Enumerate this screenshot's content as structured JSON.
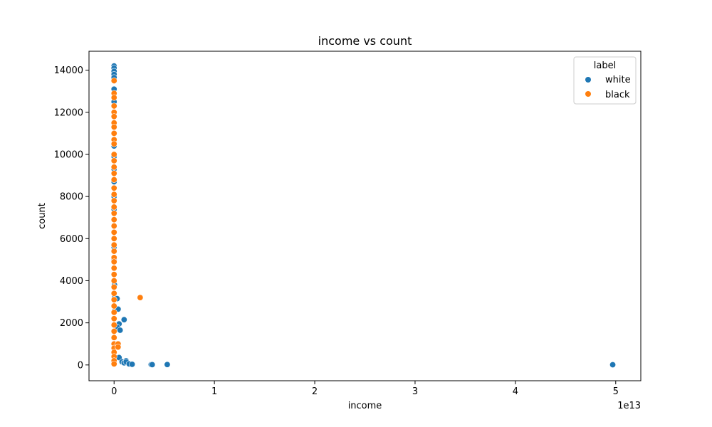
{
  "chart_data": {
    "type": "scatter",
    "title": "income vs count",
    "xlabel": "income",
    "ylabel": "count",
    "x_offset_label": "1e13",
    "xlim": [
      -0.25,
      5.25
    ],
    "ylim": [
      -750,
      14900
    ],
    "xticks": [
      0,
      1,
      2,
      3,
      4,
      5
    ],
    "yticks": [
      0,
      2000,
      4000,
      6000,
      8000,
      10000,
      12000,
      14000
    ],
    "grid": false,
    "legend": {
      "title": "label",
      "placement": "top-right"
    },
    "series": [
      {
        "name": "white",
        "color": "#1f77b4",
        "x": [
          0,
          0,
          0,
          0,
          0,
          0,
          0,
          0,
          0,
          0,
          0,
          0,
          0,
          0,
          0,
          0,
          0,
          0,
          0,
          0,
          0.002,
          0.004,
          0.006,
          0.01,
          0.03,
          0.04,
          0.05,
          0.03,
          0.06,
          0.1,
          0.12,
          0.05,
          0.08,
          0.1,
          0.12,
          0.15,
          0.18,
          0.37,
          0.38,
          0.53,
          4.97
        ],
        "y": [
          14200,
          14100,
          13950,
          13800,
          13650,
          13100,
          12500,
          12000,
          11500,
          11000,
          10400,
          9900,
          9300,
          8700,
          8000,
          7400,
          6900,
          6300,
          5600,
          5000,
          4300,
          3800,
          3200,
          2600,
          3150,
          2650,
          1950,
          1800,
          1650,
          2150,
          200,
          350,
          150,
          100,
          150,
          50,
          30,
          20,
          15,
          20,
          10
        ]
      },
      {
        "name": "black",
        "color": "#ff7f0e",
        "x": [
          0,
          0,
          0,
          0,
          0,
          0,
          0,
          0,
          0,
          0,
          0,
          0,
          0,
          0,
          0,
          0,
          0,
          0,
          0,
          0,
          0,
          0,
          0,
          0,
          0,
          0,
          0,
          0,
          0,
          0,
          0,
          0,
          0,
          0,
          0,
          0,
          0,
          0,
          0,
          0,
          0,
          0,
          0,
          0,
          0,
          0,
          0,
          0.04,
          0.04,
          0.26
        ],
        "y": [
          13500,
          12900,
          12700,
          12300,
          12000,
          11800,
          11500,
          11300,
          11000,
          10700,
          10500,
          10000,
          9700,
          9400,
          9100,
          8800,
          8400,
          8100,
          7800,
          7500,
          7200,
          6900,
          6600,
          6300,
          6000,
          5700,
          5400,
          5100,
          4900,
          4600,
          4300,
          4000,
          3700,
          3400,
          3100,
          2800,
          2500,
          2200,
          1900,
          1600,
          1300,
          1000,
          800,
          600,
          400,
          200,
          50,
          1000,
          850,
          3200
        ]
      }
    ]
  }
}
